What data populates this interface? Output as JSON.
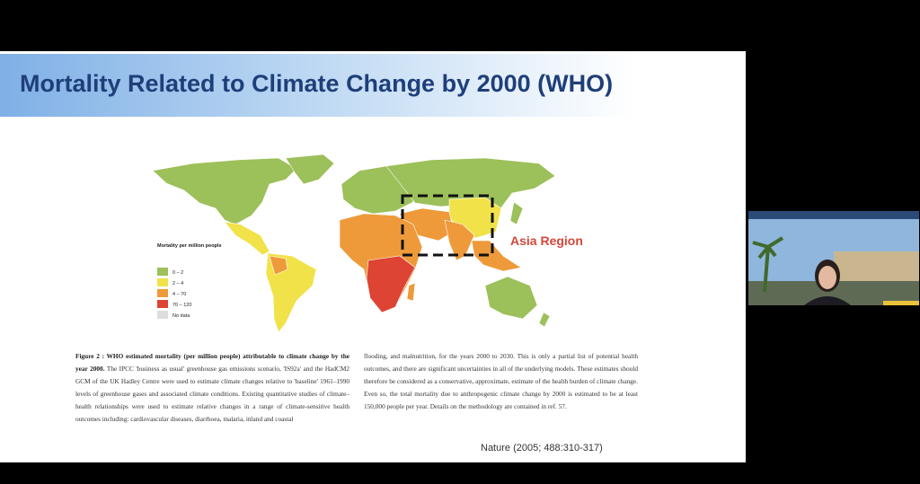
{
  "slide": {
    "title": "Mortality Related to Climate Change by 2000 (WHO)",
    "annotation": "Asia Region",
    "legend": {
      "title": "Mortality per million people",
      "items": [
        "0 – 2",
        "2 – 4",
        "4 – 70",
        "70 – 120",
        "No data"
      ]
    },
    "caption": {
      "heading": "Figure 2 : WHO estimated mortality (per million people) attributable to climate change by the year 2000.",
      "column1": "The IPCC 'business as usual' greenhouse gas emissions scenario, 'IS92a' and the HadCM2 GCM of the UK Hadley Centre were used to estimate climate changes relative to 'baseline' 1961–1990 levels of greenhouse gases and associated climate conditions. Existing quantitative studies of climate–health relationships were used to estimate relative changes in a range of climate-sensitive health outcomes including: cardiovascular diseases, diarrhoea, malaria, inland and coastal",
      "column2": "flooding, and malnutrition, for the years 2000 to 2030. This is only a partial list of potential health outcomes, and there are significant uncertainties in all of the underlying models. These estimates should therefore be considered as a conservative, approximate, estimate of the health burden of climate change. Even so, the total mortality due to anthropogenic climate change by 2000 is estimated to be at least 150,000 people per year. Details on the methodology are contained in ref. 57."
    },
    "citation": "Nature (2005; 488:310-317)"
  }
}
